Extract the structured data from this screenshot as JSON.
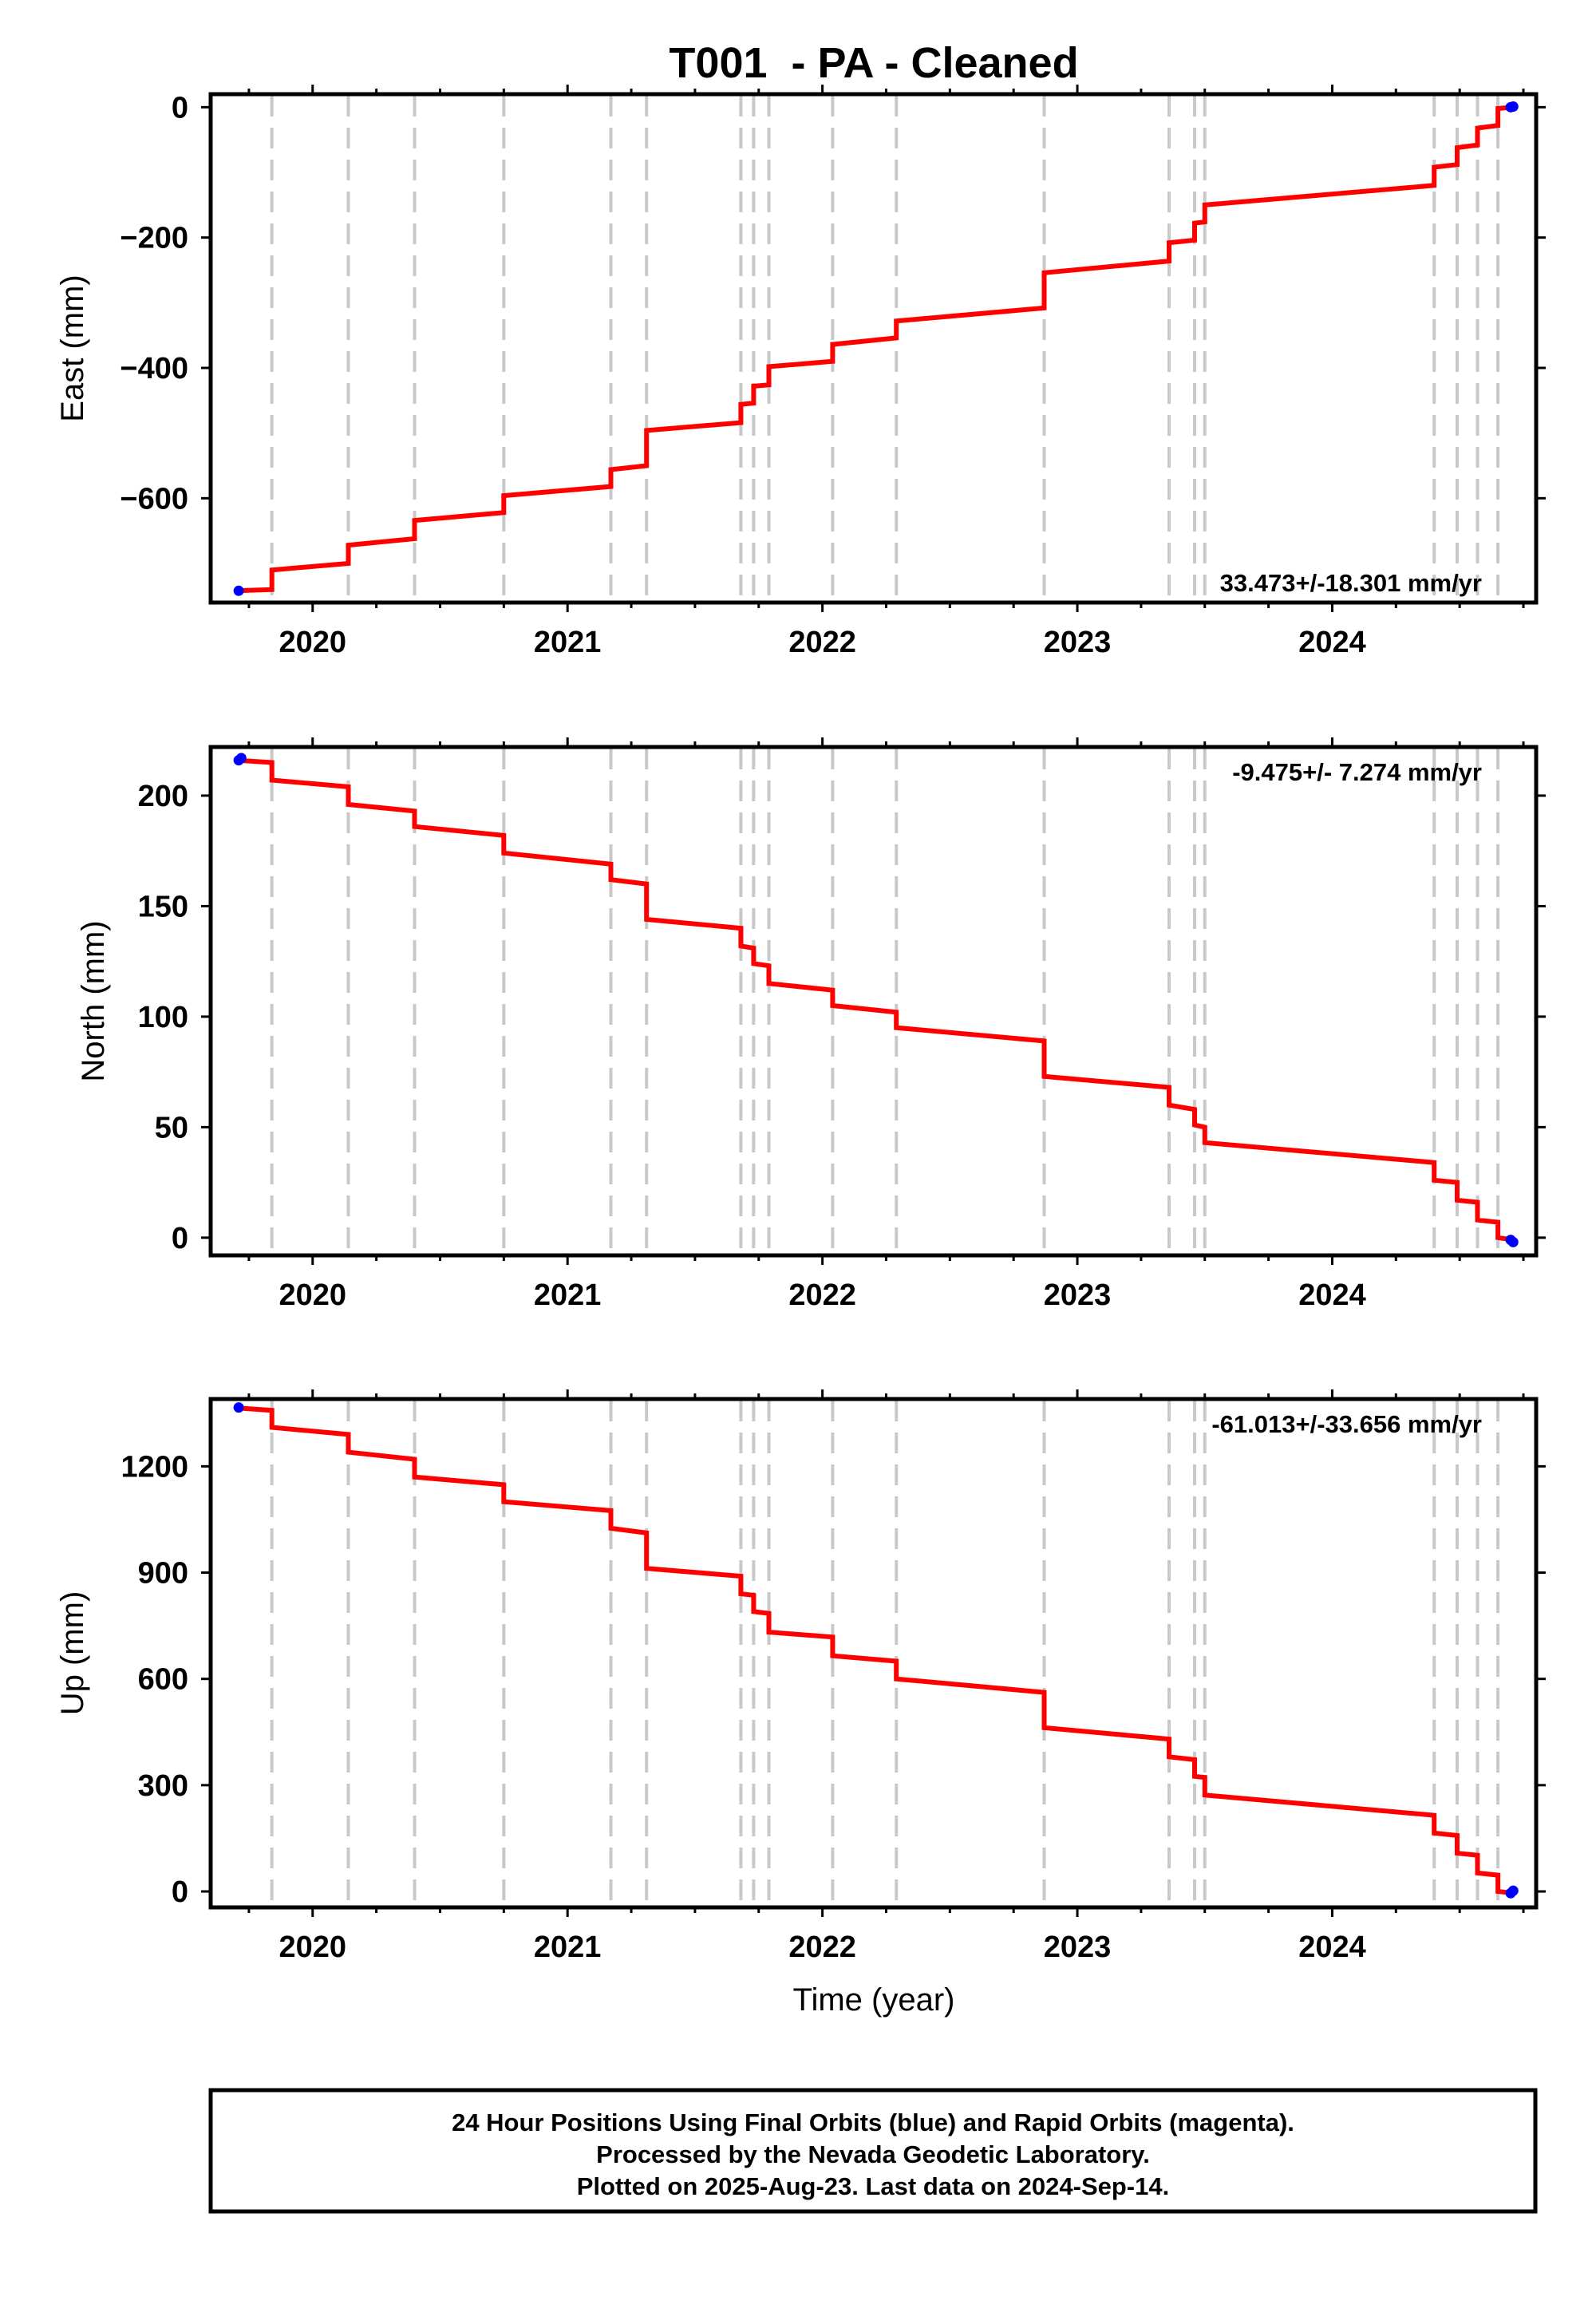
{
  "figure": {
    "title": "T001  - PA - Cleaned",
    "x_axis_label": "Time (year)",
    "footer": [
      "24 Hour Positions Using Final Orbits (blue) and Rapid Orbits (magenta).",
      "Processed by the Nevada Geodetic Laboratory.",
      "Plotted on 2025-Aug-23. Last data on 2024-Sep-14."
    ]
  },
  "colors": {
    "model_line": "#ff0000",
    "final_orbits": "#0000ff",
    "event_lines": "#c8c8c8",
    "frame": "#000000"
  },
  "chart_data": [
    {
      "type": "line",
      "component": "east",
      "ylabel": "East (mm)",
      "rate_label": "33.473+/-18.301 mm/yr",
      "rate_position": "bottom-right",
      "xlim": [
        2019.6,
        2024.8
      ],
      "ylim": [
        -760,
        20
      ],
      "x_ticks": [
        2020,
        2021,
        2022,
        2023,
        2024
      ],
      "x_tick_labels": [
        "2020",
        "2021",
        "2022",
        "2023",
        "2024"
      ],
      "y_ticks": [
        -600,
        -400,
        -200,
        0
      ],
      "y_tick_labels": [
        "−600",
        "−400",
        "−200",
        "0"
      ],
      "event_lines_x": [
        2019.84,
        2020.14,
        2020.4,
        2020.75,
        2021.17,
        2021.31,
        2021.68,
        2021.73,
        2021.79,
        2022.04,
        2022.29,
        2022.87,
        2023.36,
        2023.46,
        2023.5,
        2024.4,
        2024.49,
        2024.57,
        2024.65
      ],
      "model_segments": [
        [
          [
            2019.7,
            -742
          ],
          [
            2019.84,
            -740
          ]
        ],
        [
          [
            2019.84,
            -710
          ],
          [
            2020.14,
            -700
          ]
        ],
        [
          [
            2020.14,
            -672
          ],
          [
            2020.4,
            -662
          ]
        ],
        [
          [
            2020.4,
            -634
          ],
          [
            2020.75,
            -622
          ]
        ],
        [
          [
            2020.75,
            -596
          ],
          [
            2021.17,
            -582
          ]
        ],
        [
          [
            2021.17,
            -556
          ],
          [
            2021.31,
            -550
          ]
        ],
        [
          [
            2021.31,
            -496
          ],
          [
            2021.68,
            -484
          ]
        ],
        [
          [
            2021.68,
            -456
          ],
          [
            2021.73,
            -454
          ]
        ],
        [
          [
            2021.73,
            -428
          ],
          [
            2021.79,
            -426
          ]
        ],
        [
          [
            2021.79,
            -398
          ],
          [
            2022.04,
            -390
          ]
        ],
        [
          [
            2022.04,
            -364
          ],
          [
            2022.29,
            -354
          ]
        ],
        [
          [
            2022.29,
            -328
          ],
          [
            2022.87,
            -308
          ]
        ],
        [
          [
            2022.87,
            -254
          ],
          [
            2023.36,
            -236
          ]
        ],
        [
          [
            2023.36,
            -208
          ],
          [
            2023.46,
            -204
          ]
        ],
        [
          [
            2023.46,
            -178
          ],
          [
            2023.5,
            -176
          ]
        ],
        [
          [
            2023.5,
            -150
          ],
          [
            2024.4,
            -120
          ]
        ],
        [
          [
            2024.4,
            -92
          ],
          [
            2024.49,
            -88
          ]
        ],
        [
          [
            2024.49,
            -62
          ],
          [
            2024.57,
            -58
          ]
        ],
        [
          [
            2024.57,
            -32
          ],
          [
            2024.65,
            -28
          ]
        ],
        [
          [
            2024.65,
            -2
          ],
          [
            2024.71,
            0
          ]
        ]
      ],
      "final_orbit_points": [
        [
          2019.71,
          -742
        ],
        [
          2024.7,
          0
        ],
        [
          2024.71,
          1
        ]
      ]
    },
    {
      "type": "line",
      "component": "north",
      "ylabel": "North (mm)",
      "rate_label": "-9.475+/- 7.274 mm/yr",
      "rate_position": "top-right",
      "xlim": [
        2019.6,
        2024.8
      ],
      "ylim": [
        -8,
        222
      ],
      "x_ticks": [
        2020,
        2021,
        2022,
        2023,
        2024
      ],
      "x_tick_labels": [
        "2020",
        "2021",
        "2022",
        "2023",
        "2024"
      ],
      "y_ticks": [
        0,
        50,
        100,
        150,
        200
      ],
      "y_tick_labels": [
        "0",
        "50",
        "100",
        "150",
        "200"
      ],
      "event_lines_x": [
        2019.84,
        2020.14,
        2020.4,
        2020.75,
        2021.17,
        2021.31,
        2021.68,
        2021.73,
        2021.79,
        2022.04,
        2022.29,
        2022.87,
        2023.36,
        2023.46,
        2023.5,
        2024.4,
        2024.49,
        2024.57,
        2024.65
      ],
      "model_segments": [
        [
          [
            2019.7,
            216
          ],
          [
            2019.84,
            215
          ]
        ],
        [
          [
            2019.84,
            207
          ],
          [
            2020.14,
            204
          ]
        ],
        [
          [
            2020.14,
            196
          ],
          [
            2020.4,
            193
          ]
        ],
        [
          [
            2020.4,
            186
          ],
          [
            2020.75,
            182
          ]
        ],
        [
          [
            2020.75,
            174
          ],
          [
            2021.17,
            169
          ]
        ],
        [
          [
            2021.17,
            162
          ],
          [
            2021.31,
            160
          ]
        ],
        [
          [
            2021.31,
            144
          ],
          [
            2021.68,
            140
          ]
        ],
        [
          [
            2021.68,
            132
          ],
          [
            2021.73,
            131
          ]
        ],
        [
          [
            2021.73,
            124
          ],
          [
            2021.79,
            123
          ]
        ],
        [
          [
            2021.79,
            115
          ],
          [
            2022.04,
            112
          ]
        ],
        [
          [
            2022.04,
            105
          ],
          [
            2022.29,
            102
          ]
        ],
        [
          [
            2022.29,
            95
          ],
          [
            2022.87,
            89
          ]
        ],
        [
          [
            2022.87,
            73
          ],
          [
            2023.36,
            68
          ]
        ],
        [
          [
            2023.36,
            60
          ],
          [
            2023.46,
            58
          ]
        ],
        [
          [
            2023.46,
            51
          ],
          [
            2023.5,
            50
          ]
        ],
        [
          [
            2023.5,
            43
          ],
          [
            2024.4,
            34
          ]
        ],
        [
          [
            2024.4,
            26
          ],
          [
            2024.49,
            25
          ]
        ],
        [
          [
            2024.49,
            17
          ],
          [
            2024.57,
            16
          ]
        ],
        [
          [
            2024.57,
            8
          ],
          [
            2024.65,
            7
          ]
        ],
        [
          [
            2024.65,
            0
          ],
          [
            2024.71,
            -1
          ]
        ]
      ],
      "final_orbit_points": [
        [
          2019.71,
          216
        ],
        [
          2019.72,
          217
        ],
        [
          2024.7,
          -1
        ],
        [
          2024.71,
          -2
        ]
      ]
    },
    {
      "type": "line",
      "component": "up",
      "ylabel": "Up (mm)",
      "rate_label": "-61.013+/-33.656 mm/yr",
      "rate_position": "top-right",
      "xlim": [
        2019.6,
        2024.8
      ],
      "ylim": [
        -45,
        1390
      ],
      "x_ticks": [
        2020,
        2021,
        2022,
        2023,
        2024
      ],
      "x_tick_labels": [
        "2020",
        "2021",
        "2022",
        "2023",
        "2024"
      ],
      "y_ticks": [
        0,
        300,
        600,
        900,
        1200
      ],
      "y_tick_labels": [
        "0",
        "300",
        "600",
        "900",
        "1200"
      ],
      "event_lines_x": [
        2019.84,
        2020.14,
        2020.4,
        2020.75,
        2021.17,
        2021.31,
        2021.68,
        2021.73,
        2021.79,
        2022.04,
        2022.29,
        2022.87,
        2023.36,
        2023.46,
        2023.5,
        2024.4,
        2024.49,
        2024.57,
        2024.65
      ],
      "model_segments": [
        [
          [
            2019.7,
            1365
          ],
          [
            2019.84,
            1358
          ]
        ],
        [
          [
            2019.84,
            1310
          ],
          [
            2020.14,
            1290
          ]
        ],
        [
          [
            2020.14,
            1240
          ],
          [
            2020.4,
            1220
          ]
        ],
        [
          [
            2020.4,
            1170
          ],
          [
            2020.75,
            1148
          ]
        ],
        [
          [
            2020.75,
            1100
          ],
          [
            2021.17,
            1075
          ]
        ],
        [
          [
            2021.17,
            1025
          ],
          [
            2021.31,
            1012
          ]
        ],
        [
          [
            2021.31,
            912
          ],
          [
            2021.68,
            890
          ]
        ],
        [
          [
            2021.68,
            840
          ],
          [
            2021.73,
            836
          ]
        ],
        [
          [
            2021.73,
            790
          ],
          [
            2021.79,
            785
          ]
        ],
        [
          [
            2021.79,
            732
          ],
          [
            2022.04,
            718
          ]
        ],
        [
          [
            2022.04,
            665
          ],
          [
            2022.29,
            650
          ]
        ],
        [
          [
            2022.29,
            600
          ],
          [
            2022.87,
            562
          ]
        ],
        [
          [
            2022.87,
            462
          ],
          [
            2023.36,
            430
          ]
        ],
        [
          [
            2023.36,
            380
          ],
          [
            2023.46,
            372
          ]
        ],
        [
          [
            2023.46,
            325
          ],
          [
            2023.5,
            322
          ]
        ],
        [
          [
            2023.5,
            272
          ],
          [
            2024.4,
            215
          ]
        ],
        [
          [
            2024.4,
            165
          ],
          [
            2024.49,
            158
          ]
        ],
        [
          [
            2024.49,
            108
          ],
          [
            2024.57,
            102
          ]
        ],
        [
          [
            2024.57,
            52
          ],
          [
            2024.65,
            46
          ]
        ],
        [
          [
            2024.65,
            0
          ],
          [
            2024.71,
            -5
          ]
        ]
      ],
      "final_orbit_points": [
        [
          2019.71,
          1366
        ],
        [
          2024.7,
          -5
        ],
        [
          2024.71,
          2
        ]
      ]
    }
  ]
}
